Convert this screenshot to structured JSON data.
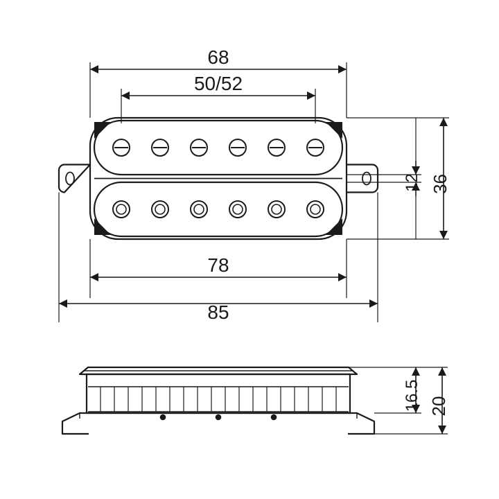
{
  "diagram": {
    "type": "engineering-drawing",
    "subject": "humbucker-guitar-pickup",
    "background_color": "#ffffff",
    "stroke_color": "#1a1a1a",
    "stroke_width_main": 2.2,
    "stroke_width_dim": 1.6,
    "font_size_dim": 28,
    "dimensions": {
      "top_outer": "68",
      "top_inner": "50/52",
      "bottom_inner": "78",
      "bottom_outer": "85",
      "height_outer": "36",
      "height_gap": "12",
      "side_height_inner": "16.5",
      "side_height_outer": "20"
    },
    "top_view": {
      "body_width": 370,
      "body_height": 175,
      "coil_radius": 40,
      "pole_count": 6,
      "pole_radius": 12,
      "pole_slot_radius": 12
    },
    "side_view": {
      "plate_width": 470,
      "body_width": 400,
      "body_height": 70,
      "plate_height": 18
    }
  }
}
